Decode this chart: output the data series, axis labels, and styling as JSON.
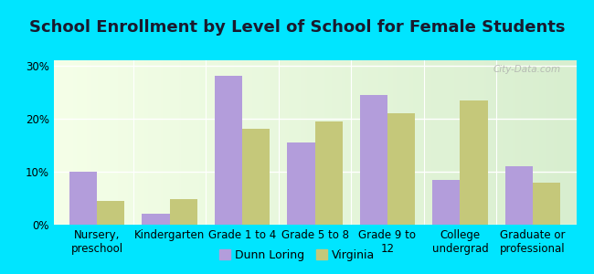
{
  "title": "School Enrollment by Level of School for Female Students",
  "categories": [
    "Nursery,\npreschool",
    "Kindergarten",
    "Grade 1 to 4",
    "Grade 5 to 8",
    "Grade 9 to\n12",
    "College\nundergrad",
    "Graduate or\nprofessional"
  ],
  "dunn_loring": [
    10.0,
    2.0,
    28.0,
    15.5,
    24.5,
    8.5,
    11.0
  ],
  "virginia": [
    4.5,
    4.8,
    18.0,
    19.5,
    21.0,
    23.5,
    8.0
  ],
  "dunn_loring_color": "#b39ddb",
  "virginia_color": "#c5c87a",
  "background_color": "#00e5ff",
  "ylabel_ticks": [
    "0%",
    "10%",
    "20%",
    "30%"
  ],
  "yticks": [
    0,
    10,
    20,
    30
  ],
  "ylim": [
    0,
    31
  ],
  "legend_labels": [
    "Dunn Loring",
    "Virginia"
  ],
  "title_fontsize": 13,
  "tick_fontsize": 8.5,
  "legend_fontsize": 9,
  "bar_width": 0.38
}
